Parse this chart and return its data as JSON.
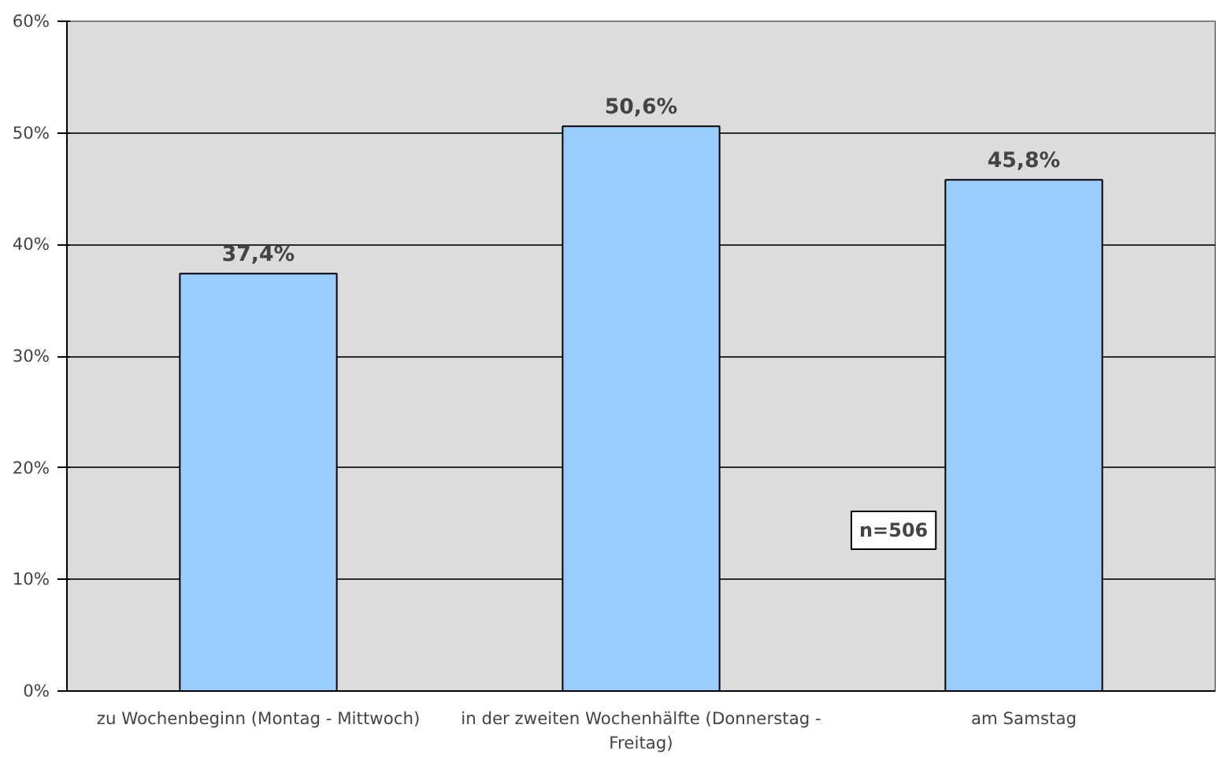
{
  "chart_data": {
    "type": "bar",
    "categories": [
      "zu Wochenbeginn (Montag - Mittwoch)",
      "in der zweiten Wochenhälfte (Donnerstag - Freitag)",
      "am Samstag"
    ],
    "values": [
      37.4,
      50.6,
      45.8
    ],
    "color": "#99ccff",
    "value_labels": [
      "37,4%",
      "50,6%",
      "45,8%"
    ],
    "ylim": [
      0,
      60
    ],
    "yticks": [
      {
        "value": 0,
        "label": "0%"
      },
      {
        "value": 10,
        "label": "10%"
      },
      {
        "value": 20,
        "label": "20%"
      },
      {
        "value": 30,
        "label": "30%"
      },
      {
        "value": 40,
        "label": "40%"
      },
      {
        "value": 50,
        "label": "50%"
      },
      {
        "value": 60,
        "label": "60%"
      }
    ],
    "grid": "y",
    "annotations": [
      "n=506"
    ]
  }
}
